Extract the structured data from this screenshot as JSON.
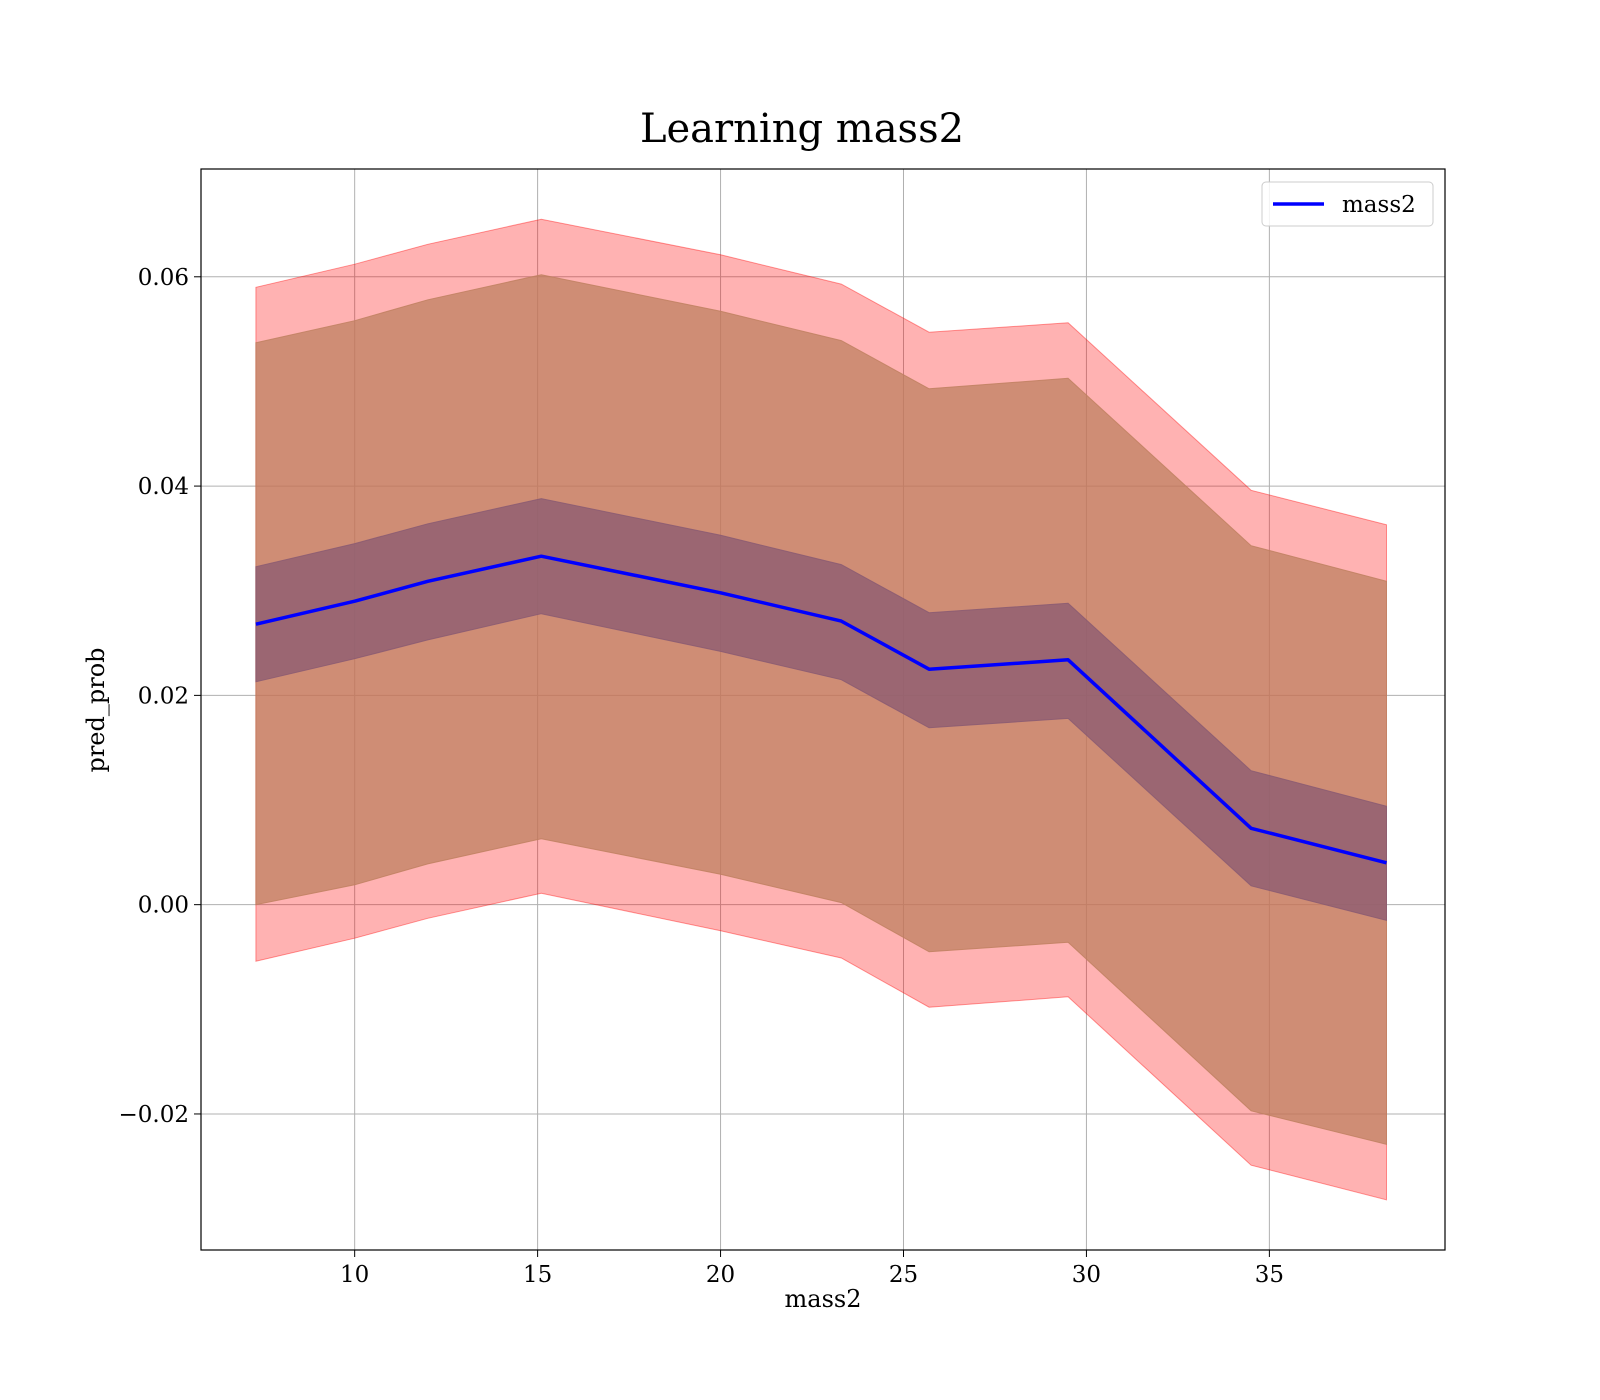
{
  "chart_data": {
    "type": "line",
    "title": "Learning mass2",
    "xlabel": "mass2",
    "ylabel": "pred_prob",
    "xlim": [
      5.8,
      39.8
    ],
    "ylim": [
      -0.033,
      0.0703
    ],
    "x_ticks": [
      10,
      15,
      20,
      25,
      30,
      35
    ],
    "x_tick_labels": [
      "10",
      "15",
      "20",
      "25",
      "30",
      "35"
    ],
    "y_ticks": [
      -0.02,
      0.0,
      0.02,
      0.04,
      0.06
    ],
    "y_tick_labels": [
      "−0.02",
      "0.00",
      "0.02",
      "0.04",
      "0.06"
    ],
    "grid": true,
    "legend_position": "top-right",
    "x": [
      7.3,
      10.0,
      12.0,
      15.1,
      20.0,
      23.3,
      25.7,
      29.5,
      34.5,
      38.2
    ],
    "series": [
      {
        "name": "mass2",
        "color": "#0000ff",
        "values": [
          0.0268,
          0.029,
          0.0309,
          0.0333,
          0.0298,
          0.0271,
          0.0225,
          0.0234,
          0.0073,
          0.004
        ]
      }
    ],
    "bands": [
      {
        "role": "outer",
        "color": "#ff0000",
        "opacity": 0.3,
        "lower": [
          -0.0054,
          -0.0032,
          -0.0013,
          0.0011,
          -0.0025,
          -0.0051,
          -0.0098,
          -0.0088,
          -0.0249,
          -0.0282
        ],
        "upper": [
          0.059,
          0.0612,
          0.0631,
          0.0655,
          0.0621,
          0.0593,
          0.0547,
          0.0556,
          0.0396,
          0.0363
        ]
      },
      {
        "role": "middle",
        "color": "#bf8060",
        "opacity": 0.75,
        "lower": [
          0.0,
          0.0019,
          0.0039,
          0.0063,
          0.0029,
          0.0002,
          -0.0045,
          -0.0036,
          -0.0197,
          -0.0229
        ],
        "upper": [
          0.0537,
          0.0558,
          0.0578,
          0.0602,
          0.0567,
          0.0539,
          0.0493,
          0.0503,
          0.0343,
          0.0309
        ]
      },
      {
        "role": "inner",
        "color": "#8a5a72",
        "opacity": 0.75,
        "lower": [
          0.0213,
          0.0235,
          0.0253,
          0.0278,
          0.0242,
          0.0215,
          0.0169,
          0.0178,
          0.0018,
          -0.0015
        ],
        "upper": [
          0.0323,
          0.0345,
          0.0364,
          0.0388,
          0.0353,
          0.0325,
          0.0279,
          0.0288,
          0.0128,
          0.0094
        ]
      }
    ]
  }
}
